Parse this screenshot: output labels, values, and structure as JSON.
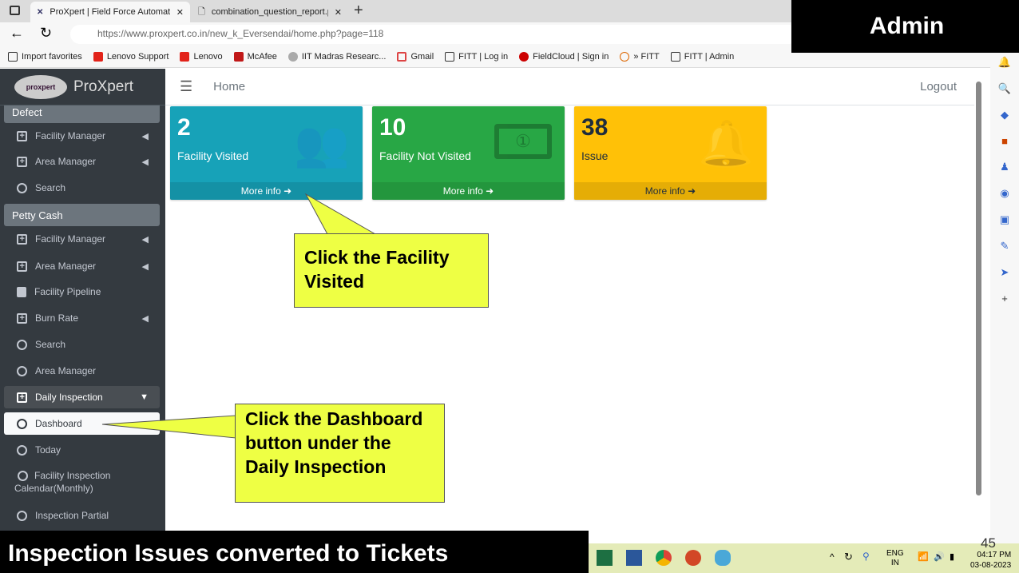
{
  "browser": {
    "tabs": [
      {
        "title": "ProXpert | Field Force Automation"
      },
      {
        "title": "combination_question_report.php"
      }
    ],
    "url": "https://www.proxpert.co.in/new_k_Eversendai/home.php?page=118",
    "favorites": [
      "Import favorites",
      "Lenovo Support",
      "Lenovo",
      "McAfee",
      "IIT Madras Researc...",
      "Gmail",
      "FITT | Log in",
      "FieldCloud | Sign in",
      "» FITT",
      "FITT | Admin"
    ]
  },
  "overlay": {
    "role": "Admin",
    "caption": "Inspection Issues converted to Tickets",
    "slide_number": "45"
  },
  "app": {
    "brand": "ProXpert",
    "logo_text": "proxpert",
    "nav": {
      "home": "Home",
      "logout": "Logout"
    }
  },
  "sidebar": {
    "defect_header": "Defect",
    "defect_items": [
      "Facility Manager",
      "Area Manager",
      "Search"
    ],
    "petty_header": "Petty Cash",
    "petty_items": [
      "Facility Manager",
      "Area Manager",
      "Facility Pipeline",
      "Burn Rate",
      "Search",
      "Area Manager"
    ],
    "daily": "Daily Inspection",
    "daily_items": [
      "Dashboard",
      "Today",
      "Facility Inspection Calendar(Monthly)",
      "Inspection Partial"
    ]
  },
  "cards": [
    {
      "value": "2",
      "label": "Facility Visited",
      "more": "More info",
      "color": "#17a2b8",
      "icon": "users-icon"
    },
    {
      "value": "10",
      "label": "Facility Not Visited",
      "more": "More info",
      "color": "#28a745",
      "icon": "money-bill-icon"
    },
    {
      "value": "38",
      "label": "Issue",
      "more": "More info",
      "color": "#ffc107",
      "icon": "bell-icon"
    }
  ],
  "callouts": [
    "Click the Facility Visited",
    "Click the Dashboard button under the Daily Inspection"
  ],
  "taskbar": {
    "lang": "ENG",
    "region": "IN",
    "time": "04:17 PM",
    "date": "03-08-2023"
  }
}
